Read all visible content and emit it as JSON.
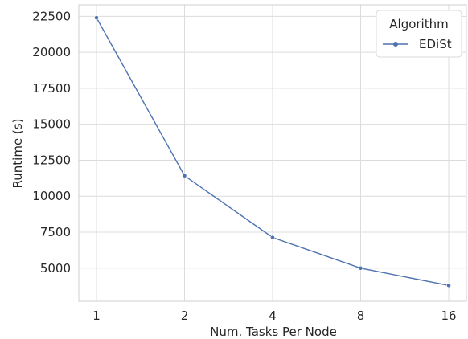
{
  "chart_data": {
    "type": "line",
    "title": "",
    "xlabel": "Num. Tasks Per Node",
    "ylabel": "Runtime (s)",
    "categories": [
      "1",
      "2",
      "4",
      "8",
      "16"
    ],
    "series": [
      {
        "name": "EDiSt",
        "color": "#4c72b0",
        "marker": "circle",
        "values": [
          22400,
          11420,
          7130,
          5000,
          3800
        ]
      }
    ],
    "yticks": [
      5000,
      7500,
      10000,
      12500,
      15000,
      17500,
      20000,
      22500
    ],
    "ylim": [
      2700,
      23300
    ],
    "grid": true,
    "legend": {
      "title": "Algorithm",
      "placement": "top-right"
    }
  }
}
